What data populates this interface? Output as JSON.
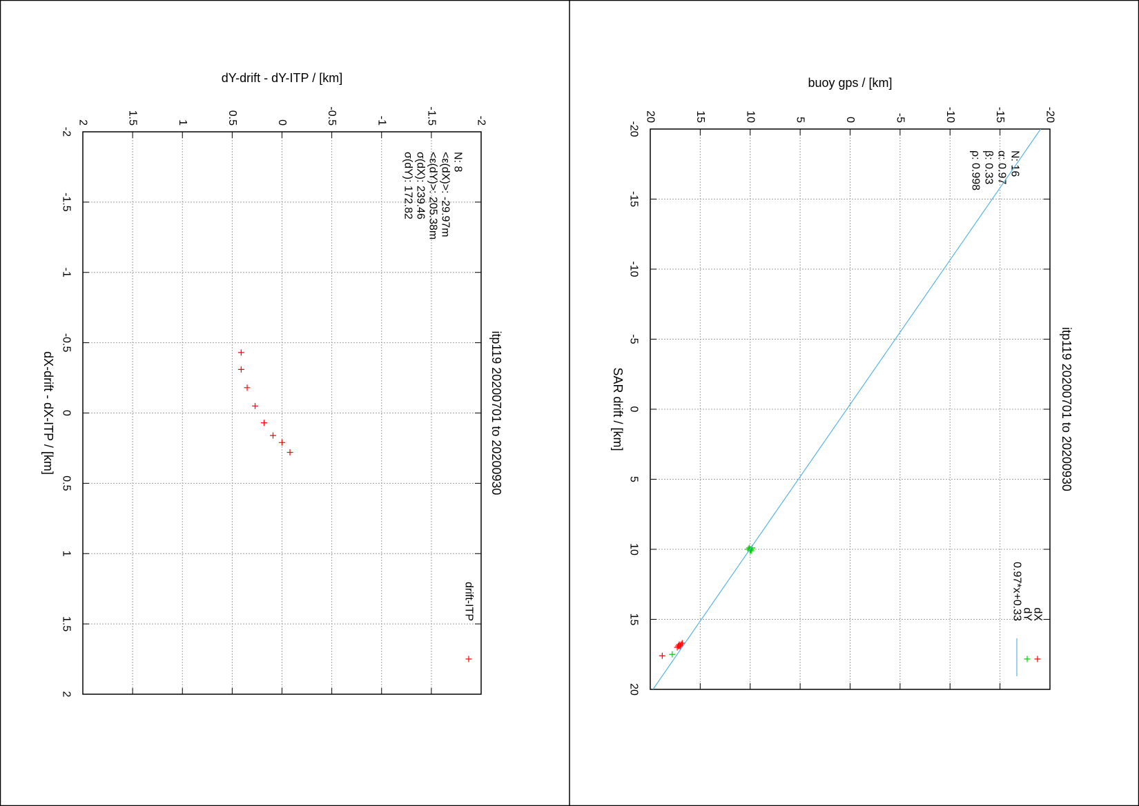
{
  "chart_data": [
    {
      "type": "scatter",
      "title": "itp119 20200701 to 20200930",
      "xlabel": "SAR drift / [km]",
      "ylabel": "buoy gps / [km]",
      "xlim": [
        -20,
        20
      ],
      "ylim": [
        -20,
        20
      ],
      "x_ticks": [
        "-20",
        "-15",
        "-10",
        "-5",
        "0",
        "5",
        "10",
        "15",
        "20"
      ],
      "y_ticks": [
        "-20",
        "-15",
        "-10",
        "-5",
        "0",
        "5",
        "10",
        "15",
        "20"
      ],
      "grid": true,
      "legend_position": "top-right",
      "stats": [
        "N: 16",
        "α: 0.97",
        "β: 0.33",
        "ρ: 0.998"
      ],
      "series": [
        {
          "name": "dX",
          "color": "#ff0000",
          "marker": "plus",
          "points": [
            [
              16.7,
              16.8
            ],
            [
              16.8,
              16.9
            ],
            [
              16.9,
              17.0
            ],
            [
              16.8,
              17.1
            ],
            [
              16.9,
              17.2
            ],
            [
              17.0,
              17.3
            ],
            [
              16.9,
              17.1
            ],
            [
              17.6,
              18.8
            ]
          ]
        },
        {
          "name": "dY",
          "color": "#00cc00",
          "marker": "plus",
          "points": [
            [
              9.9,
              9.8
            ],
            [
              10.0,
              9.9
            ],
            [
              10.1,
              10.0
            ],
            [
              9.9,
              10.1
            ],
            [
              10.0,
              10.2
            ],
            [
              10.1,
              9.9
            ],
            [
              10.0,
              10.0
            ],
            [
              17.5,
              17.8
            ]
          ]
        },
        {
          "name": "0.97*x+0.33",
          "color": "#56b4e9",
          "marker": "line",
          "slope": 0.97,
          "intercept": 0.33
        }
      ]
    },
    {
      "type": "scatter",
      "title": "itp119 20200701 to 20200930",
      "xlabel": "dX-drift - dX-ITP / [km]",
      "ylabel": "dY-drift - dY-ITP / [km]",
      "xlim": [
        -2,
        2
      ],
      "ylim": [
        -2,
        2
      ],
      "x_ticks": [
        "-2",
        "-1.5",
        "-1",
        "-0.5",
        "0",
        "0.5",
        "1",
        "1.5",
        "2"
      ],
      "y_ticks": [
        "-2",
        "-1.5",
        "-1",
        "-0.5",
        "0",
        "0.5",
        "1",
        "1.5",
        "2"
      ],
      "grid": true,
      "legend_position": "top-right",
      "stats": [
        "N: 8",
        "<ε(dX)>: -29.97m",
        "<ε(dY)>: 205.38m",
        "σ(dX): 239.46",
        "σ(dY): 172.82"
      ],
      "series": [
        {
          "name": "drift-ITP",
          "color": "#ff0000",
          "marker": "plus",
          "points": [
            [
              -0.43,
              0.41
            ],
            [
              -0.31,
              0.41
            ],
            [
              -0.18,
              0.35
            ],
            [
              -0.05,
              0.27
            ],
            [
              0.07,
              0.18
            ],
            [
              0.16,
              0.09
            ],
            [
              0.21,
              0.0
            ],
            [
              0.28,
              -0.08
            ]
          ]
        }
      ]
    }
  ]
}
